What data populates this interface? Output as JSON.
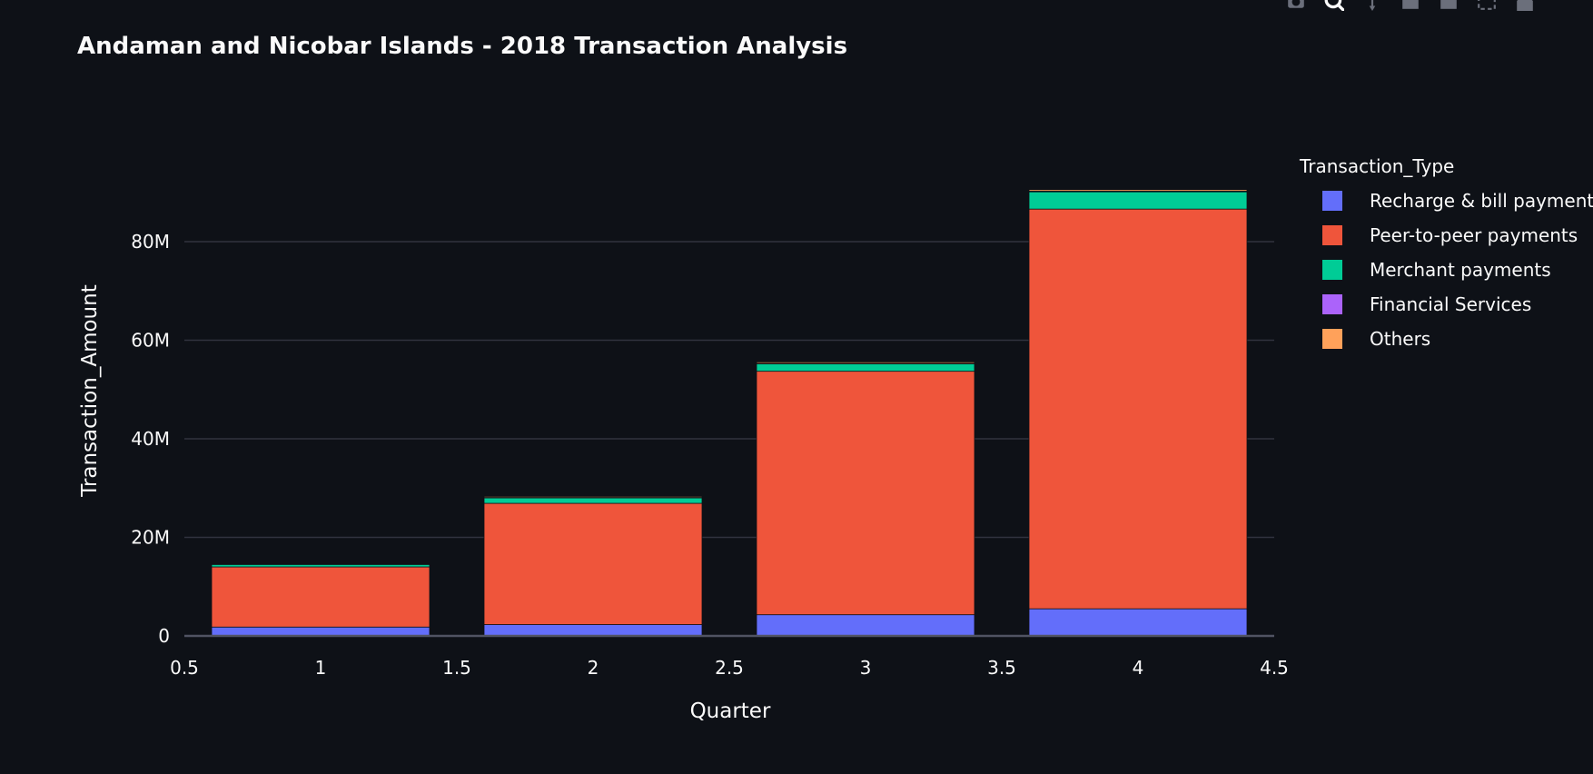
{
  "chart_data": {
    "type": "bar",
    "barmode": "stack",
    "title": "Andaman and Nicobar Islands - 2018 Transaction Analysis",
    "xlabel": "Quarter",
    "ylabel": "Transaction_Amount",
    "xlim": [
      0.5,
      4.5
    ],
    "ylim": [
      0,
      94000000
    ],
    "x_ticks": [
      0.5,
      1,
      1.5,
      2,
      2.5,
      3,
      3.5,
      4,
      4.5
    ],
    "x_tick_labels": [
      "0.5",
      "1",
      "1.5",
      "2",
      "2.5",
      "3",
      "3.5",
      "4",
      "4.5"
    ],
    "y_ticks": [
      0,
      20000000,
      40000000,
      60000000,
      80000000
    ],
    "y_tick_labels": [
      "0",
      "20M",
      "40M",
      "60M",
      "80M"
    ],
    "grid": true,
    "legend_title": "Transaction_Type",
    "legend_position": "right",
    "x": [
      1,
      2,
      3,
      4
    ],
    "series": [
      {
        "name": "Recharge & bill payments",
        "color": "#636efa",
        "values": [
          1800000,
          2300000,
          4300000,
          5500000
        ]
      },
      {
        "name": "Peer-to-peer payments",
        "color": "#ef553b",
        "values": [
          12200000,
          24600000,
          49400000,
          81100000
        ]
      },
      {
        "name": "Merchant payments",
        "color": "#00cc96",
        "values": [
          500000,
          1100000,
          1500000,
          3500000
        ]
      },
      {
        "name": "Financial Services",
        "color": "#ab63fa",
        "values": [
          50000,
          100000,
          130000,
          150000
        ]
      },
      {
        "name": "Others",
        "color": "#ffa15a",
        "values": [
          100000,
          200000,
          250000,
          300000
        ]
      }
    ]
  },
  "modebar": {
    "icons": [
      "camera-icon",
      "zoom-icon",
      "pan-icon",
      "zoom-in-icon",
      "zoom-out-icon",
      "autoscale-icon",
      "home-icon",
      "fullscreen-icon"
    ]
  }
}
